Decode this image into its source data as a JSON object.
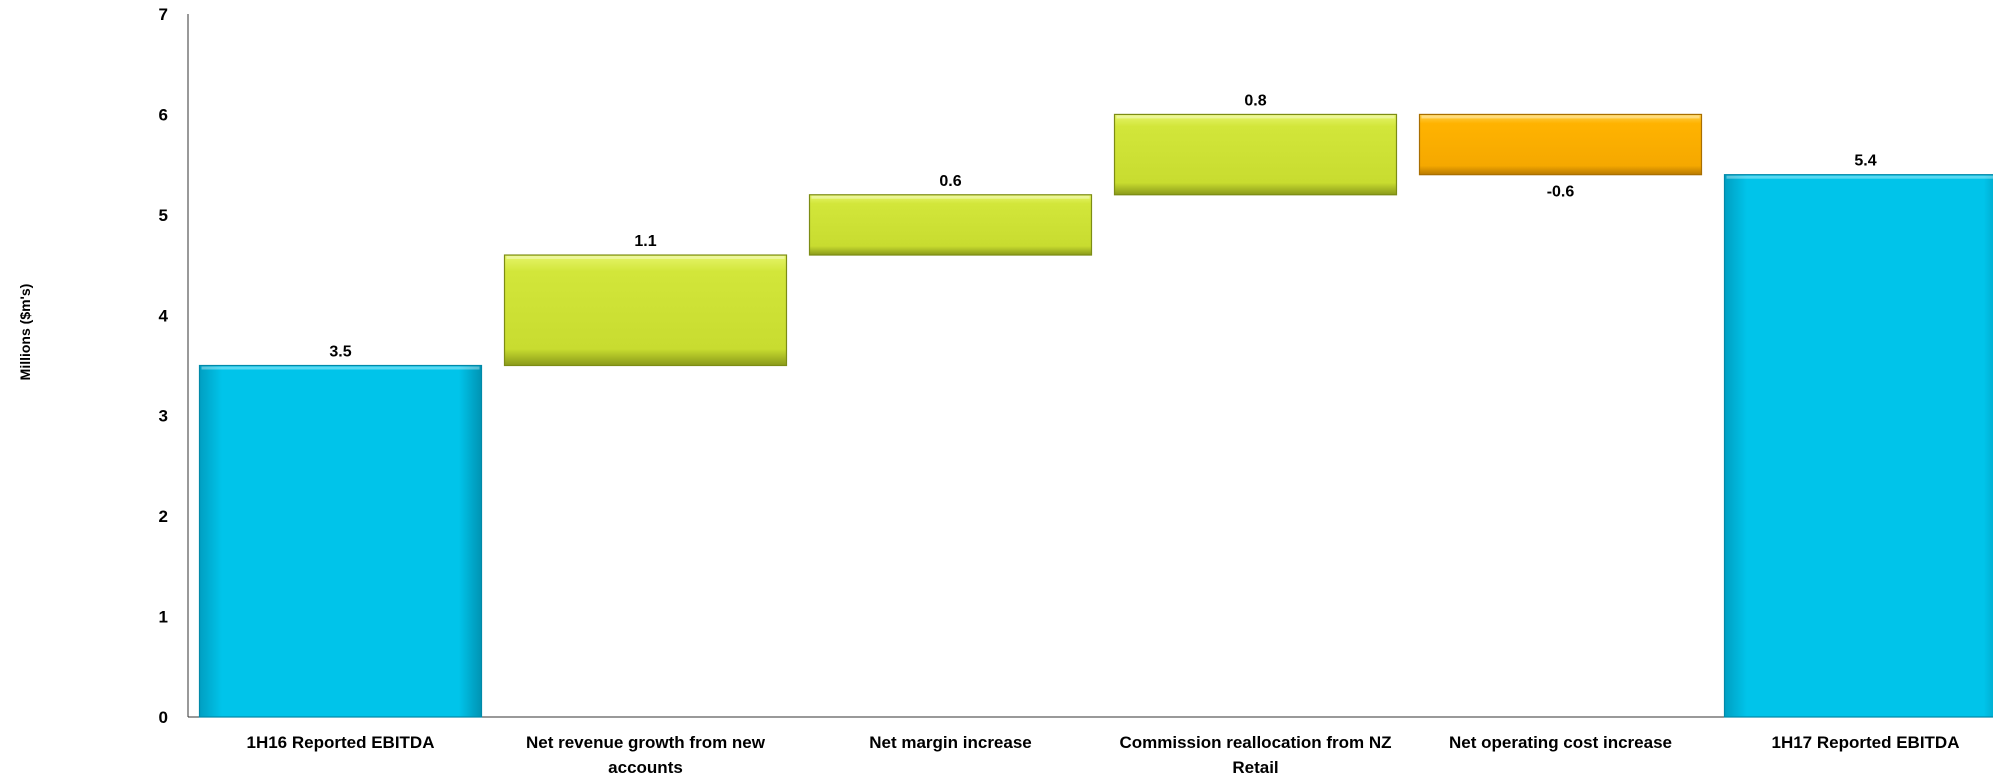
{
  "chart_data": {
    "type": "waterfall",
    "categories": [
      "1H16 Reported EBITDA",
      "Net revenue growth from new accounts",
      "Net margin increase",
      "Commission reallocation from NZ Retail",
      "Net operating cost increase",
      "1H17 Reported EBITDA"
    ],
    "category_lines": [
      [
        "1H16 Reported EBITDA"
      ],
      [
        "Net revenue growth from new",
        "accounts"
      ],
      [
        "Net margin increase"
      ],
      [
        "Commission reallocation from NZ",
        "Retail"
      ],
      [
        "Net operating cost increase"
      ],
      [
        "1H17 Reported EBITDA"
      ]
    ],
    "bars": [
      {
        "base": 0,
        "top": 3.5,
        "value": 3.5,
        "label": "3.5",
        "kind": "total"
      },
      {
        "base": 3.5,
        "top": 4.6,
        "value": 1.1,
        "label": "1.1",
        "kind": "increase"
      },
      {
        "base": 4.6,
        "top": 5.2,
        "value": 0.6,
        "label": "0.6",
        "kind": "increase"
      },
      {
        "base": 5.2,
        "top": 6.0,
        "value": 0.8,
        "label": "0.8",
        "kind": "increase"
      },
      {
        "base": 5.4,
        "top": 6.0,
        "value": -0.6,
        "label": "-0.6",
        "kind": "decrease"
      },
      {
        "base": 0,
        "top": 5.4,
        "value": 5.4,
        "label": "5.4",
        "kind": "total"
      }
    ],
    "ylabel": "Millions  ($m's)",
    "yticks": [
      "0",
      "1",
      "2",
      "3",
      "4",
      "5",
      "6",
      "7"
    ],
    "ylim": [
      0,
      7
    ],
    "grid": false,
    "colors": {
      "total": "#00c0e6",
      "increase": "#d0e63a",
      "decrease": "#ffb300"
    }
  }
}
